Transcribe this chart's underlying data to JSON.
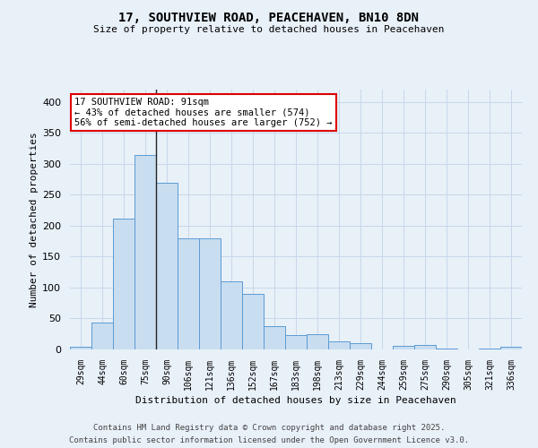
{
  "title_line1": "17, SOUTHVIEW ROAD, PEACEHAVEN, BN10 8DN",
  "title_line2": "Size of property relative to detached houses in Peacehaven",
  "xlabel": "Distribution of detached houses by size in Peacehaven",
  "ylabel": "Number of detached properties",
  "categories": [
    "29sqm",
    "44sqm",
    "60sqm",
    "75sqm",
    "90sqm",
    "106sqm",
    "121sqm",
    "136sqm",
    "152sqm",
    "167sqm",
    "183sqm",
    "198sqm",
    "213sqm",
    "229sqm",
    "244sqm",
    "259sqm",
    "275sqm",
    "290sqm",
    "305sqm",
    "321sqm",
    "336sqm"
  ],
  "values": [
    5,
    44,
    212,
    315,
    270,
    179,
    179,
    110,
    90,
    38,
    23,
    24,
    13,
    10,
    0,
    6,
    7,
    2,
    0,
    1,
    4
  ],
  "bar_color": "#c9ddf0",
  "bar_edge_color": "#5b9bd5",
  "annotation_line1": "17 SOUTHVIEW ROAD: 91sqm",
  "annotation_line2": "← 43% of detached houses are smaller (574)",
  "annotation_line3": "56% of semi-detached houses are larger (752) →",
  "annotation_box_color": "#ffffff",
  "annotation_box_edgecolor": "#dd0000",
  "vline_color": "#222222",
  "grid_color": "#c8d8ea",
  "background_color": "#e8f0f8",
  "footer_line1": "Contains HM Land Registry data © Crown copyright and database right 2025.",
  "footer_line2": "Contains public sector information licensed under the Open Government Licence v3.0.",
  "ylim": [
    0,
    420
  ],
  "yticks": [
    0,
    50,
    100,
    150,
    200,
    250,
    300,
    350,
    400
  ]
}
